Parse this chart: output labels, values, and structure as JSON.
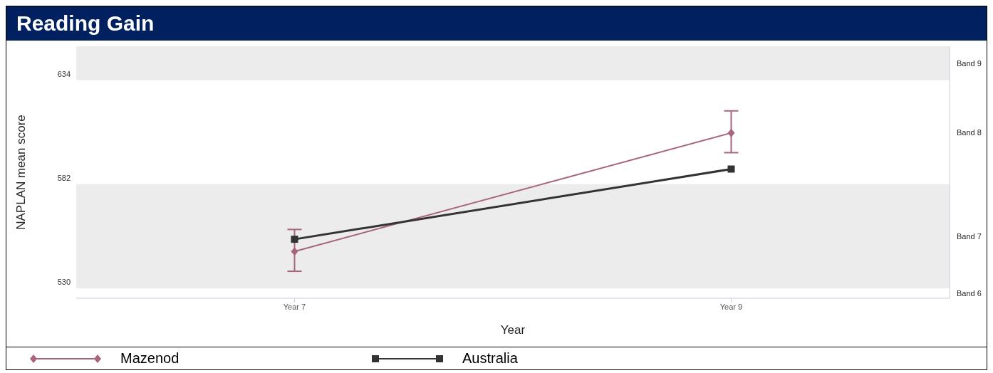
{
  "chart_data": {
    "type": "line",
    "title": "Reading Gain",
    "xlabel": "Year",
    "ylabel": "NAPLAN mean score",
    "categories": [
      "Year 7",
      "Year 9"
    ],
    "series": [
      {
        "name": "Mazenod",
        "color": "#a8657a",
        "values": [
          545.4,
          604.7
        ],
        "errors": [
          [
            535.5,
            556.4
          ],
          [
            594.8,
            615.7
          ]
        ],
        "marker": "diamond"
      },
      {
        "name": "Australia",
        "color": "#333333",
        "values": [
          551.5,
          586.6
        ],
        "marker": "square"
      }
    ],
    "ylim": [
      522,
      648
    ],
    "yticks": [
      530,
      582,
      634
    ],
    "bands": [
      {
        "axis": "y",
        "from": 527,
        "to": 579,
        "color": "#ececec"
      },
      {
        "axis": "y",
        "from": 631,
        "to": 648,
        "color": "#ececec"
      }
    ],
    "annotations": [
      "Band 6",
      "Band 7",
      "Band 8",
      "Band 9"
    ],
    "legend": "bottom"
  }
}
